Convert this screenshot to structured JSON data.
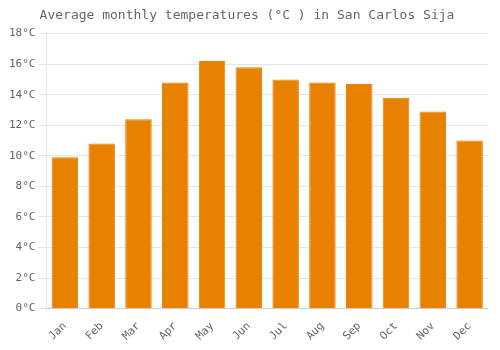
{
  "chart_data": {
    "type": "bar",
    "title": "Average monthly temperatures (°C ) in San Carlos Sija",
    "categories": [
      "Jan",
      "Feb",
      "Mar",
      "Apr",
      "May",
      "Jun",
      "Jul",
      "Aug",
      "Sep",
      "Oct",
      "Nov",
      "Dec"
    ],
    "values": [
      9.9,
      10.8,
      12.4,
      14.8,
      16.2,
      15.8,
      15.0,
      14.8,
      14.7,
      13.8,
      12.9,
      11.0
    ],
    "color": "#E88000",
    "ylim": [
      0,
      18
    ],
    "yticks": [
      {
        "value": 0,
        "label": "0°C"
      },
      {
        "value": 2,
        "label": "2°C"
      },
      {
        "value": 4,
        "label": "4°C"
      },
      {
        "value": 6,
        "label": "6°C"
      },
      {
        "value": 8,
        "label": "8°C"
      },
      {
        "value": 10,
        "label": "10°C"
      },
      {
        "value": 12,
        "label": "12°C"
      },
      {
        "value": 14,
        "label": "14°C"
      },
      {
        "value": 16,
        "label": "16°C"
      },
      {
        "value": 18,
        "label": "18°C"
      }
    ],
    "grid": true
  }
}
